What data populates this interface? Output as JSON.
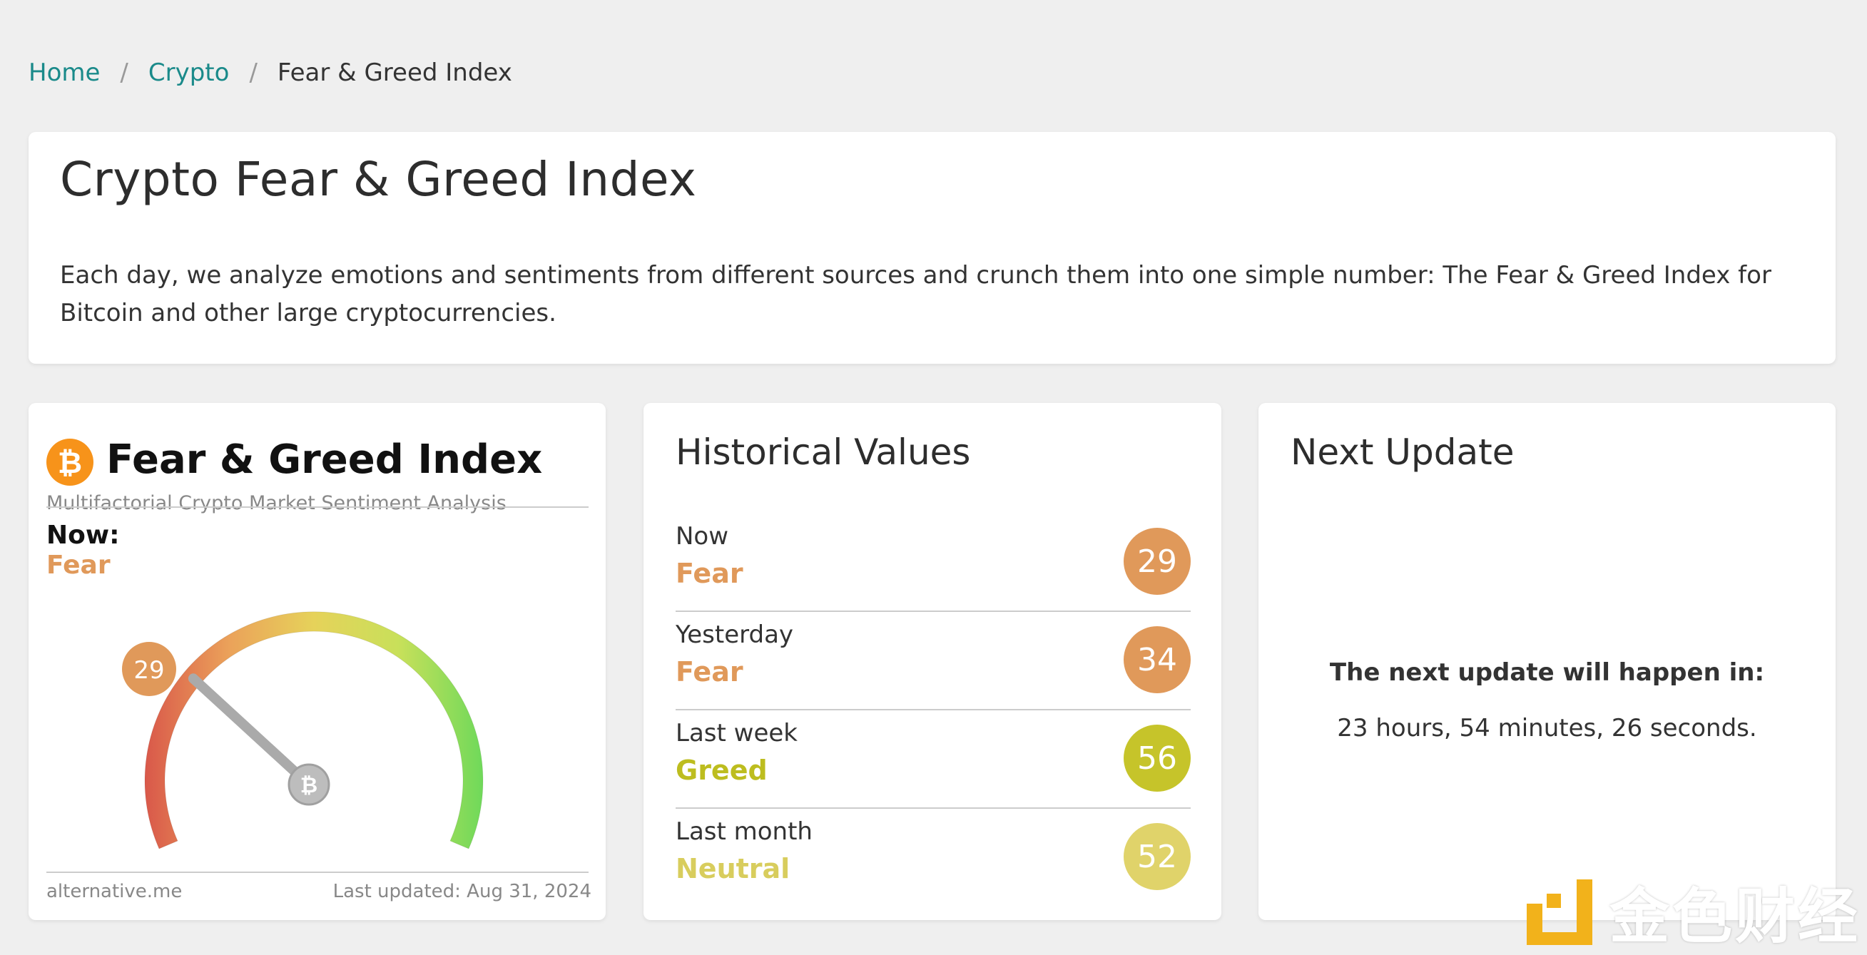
{
  "breadcrumb": {
    "home": "Home",
    "crypto": "Crypto",
    "current": "Fear & Greed Index",
    "separator": "/"
  },
  "intro": {
    "title": "Crypto Fear & Greed Index",
    "description": "Each day, we analyze emotions and sentiments from different sources and crunch them into one simple number: The Fear & Greed Index for Bitcoin and other large cryptocurrencies."
  },
  "fg_widget": {
    "logo_glyph": "₿",
    "title": "Fear & Greed Index",
    "subtitle": "Multifactorial Crypto Market Sentiment Analysis",
    "now_label": "Now:",
    "now_value": "Fear",
    "now_color": "#e0995a",
    "gauge_value": 29,
    "gauge_value_label": "29",
    "gauge_min": 0,
    "gauge_max": 100,
    "footer_source": "alternative.me",
    "footer_updated": "Last updated: Aug 31, 2024"
  },
  "historical": {
    "title": "Historical Values",
    "rows": [
      {
        "label": "Now",
        "status": "Fear",
        "value": "29",
        "status_color": "#e0995a",
        "circle_color": "#e0995a"
      },
      {
        "label": "Yesterday",
        "status": "Fear",
        "value": "34",
        "status_color": "#e0995a",
        "circle_color": "#e0995a"
      },
      {
        "label": "Last week",
        "status": "Greed",
        "value": "56",
        "status_color": "#bdbd1f",
        "circle_color": "#c6c42a"
      },
      {
        "label": "Last month",
        "status": "Neutral",
        "value": "52",
        "status_color": "#d8cd5d",
        "circle_color": "#e0d36a"
      }
    ]
  },
  "next_update": {
    "title": "Next Update",
    "message": "The next update will happen in:",
    "countdown": "23 hours, 54 minutes, 26 seconds."
  },
  "watermark": {
    "text": "金色财经"
  }
}
